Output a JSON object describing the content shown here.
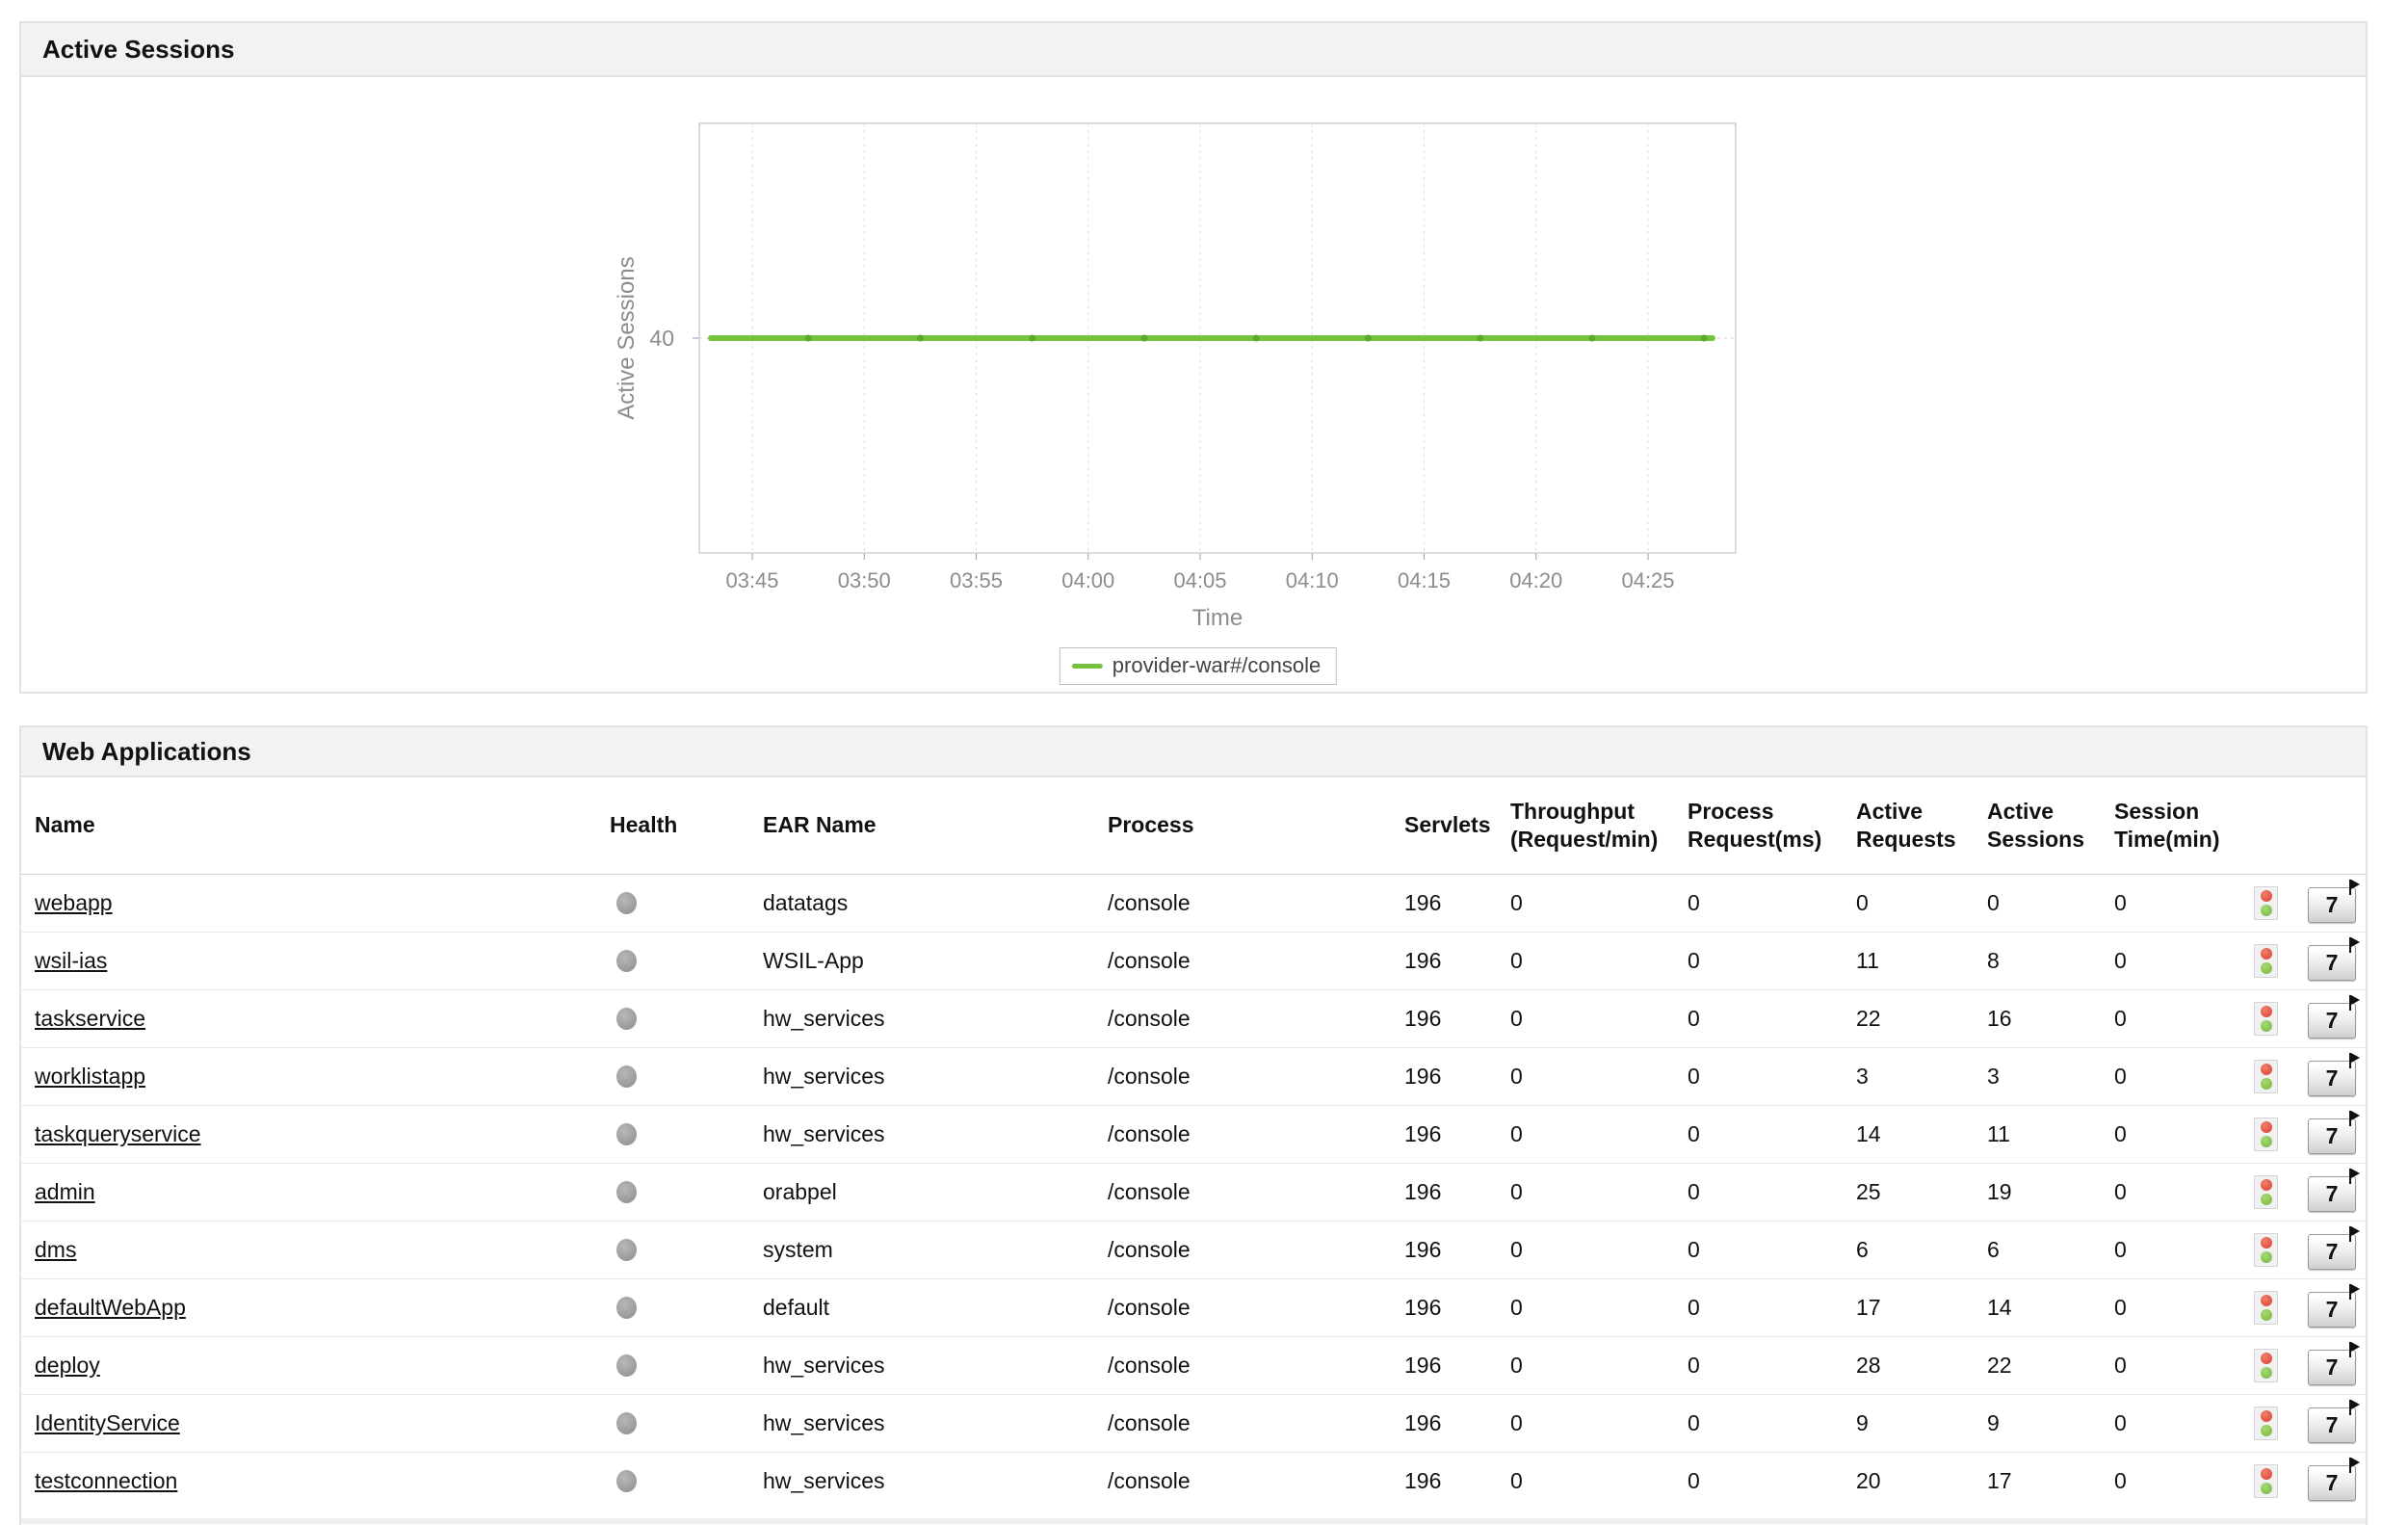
{
  "active_sessions_panel": {
    "title": "Active Sessions",
    "legend": {
      "label": "provider-war#/console",
      "color": "#76c23d"
    }
  },
  "chart_data": {
    "type": "line",
    "title": "Active Sessions",
    "xlabel": "Time",
    "ylabel": "Active Sessions",
    "x_ticks": [
      "03:45",
      "03:50",
      "03:55",
      "04:00",
      "04:05",
      "04:10",
      "04:15",
      "04:20",
      "04:25"
    ],
    "y_tick_labels": [
      "40"
    ],
    "ylim": [
      0,
      80
    ],
    "grid": "vertical-dashed",
    "legend_position": "bottom",
    "series": [
      {
        "name": "provider-war#/console",
        "color": "#76c23d",
        "marker_color": "#5ca832",
        "x": [
          "03:45",
          "03:50",
          "03:55",
          "04:00",
          "04:05",
          "04:10",
          "04:15",
          "04:20",
          "04:25"
        ],
        "values": [
          40,
          40,
          40,
          40,
          40,
          40,
          40,
          40,
          40
        ]
      }
    ]
  },
  "web_applications_panel": {
    "title": "Web Applications",
    "columns": [
      "Name",
      "Health",
      "EAR Name",
      "Process",
      "Servlets",
      "Throughput (Request/min)",
      "Process Request(ms)",
      "Active Requests",
      "Active Sessions",
      "Session Time(min)"
    ],
    "history_button_label": "7",
    "rows": [
      {
        "name": "webapp",
        "health": "gray",
        "ear_name": "datatags",
        "process": "/console",
        "servlets": "196",
        "throughput": "0",
        "process_request": "0",
        "active_requests": "0",
        "active_sessions": "0",
        "session_time": "0"
      },
      {
        "name": "wsil-ias",
        "health": "gray",
        "ear_name": "WSIL-App",
        "process": "/console",
        "servlets": "196",
        "throughput": "0",
        "process_request": "0",
        "active_requests": "11",
        "active_sessions": "8",
        "session_time": "0"
      },
      {
        "name": "taskservice",
        "health": "gray",
        "ear_name": "hw_services",
        "process": "/console",
        "servlets": "196",
        "throughput": "0",
        "process_request": "0",
        "active_requests": "22",
        "active_sessions": "16",
        "session_time": "0"
      },
      {
        "name": "worklistapp",
        "health": "gray",
        "ear_name": "hw_services",
        "process": "/console",
        "servlets": "196",
        "throughput": "0",
        "process_request": "0",
        "active_requests": "3",
        "active_sessions": "3",
        "session_time": "0"
      },
      {
        "name": "taskqueryservice",
        "health": "gray",
        "ear_name": "hw_services",
        "process": "/console",
        "servlets": "196",
        "throughput": "0",
        "process_request": "0",
        "active_requests": "14",
        "active_sessions": "11",
        "session_time": "0"
      },
      {
        "name": "admin",
        "health": "gray",
        "ear_name": "orabpel",
        "process": "/console",
        "servlets": "196",
        "throughput": "0",
        "process_request": "0",
        "active_requests": "25",
        "active_sessions": "19",
        "session_time": "0"
      },
      {
        "name": "dms",
        "health": "gray",
        "ear_name": "system",
        "process": "/console",
        "servlets": "196",
        "throughput": "0",
        "process_request": "0",
        "active_requests": "6",
        "active_sessions": "6",
        "session_time": "0"
      },
      {
        "name": "defaultWebApp",
        "health": "gray",
        "ear_name": "default",
        "process": "/console",
        "servlets": "196",
        "throughput": "0",
        "process_request": "0",
        "active_requests": "17",
        "active_sessions": "14",
        "session_time": "0"
      },
      {
        "name": "deploy",
        "health": "gray",
        "ear_name": "hw_services",
        "process": "/console",
        "servlets": "196",
        "throughput": "0",
        "process_request": "0",
        "active_requests": "28",
        "active_sessions": "22",
        "session_time": "0"
      },
      {
        "name": "IdentityService",
        "health": "gray",
        "ear_name": "hw_services",
        "process": "/console",
        "servlets": "196",
        "throughput": "0",
        "process_request": "0",
        "active_requests": "9",
        "active_sessions": "9",
        "session_time": "0"
      },
      {
        "name": "testconnection",
        "health": "gray",
        "ear_name": "hw_services",
        "process": "/console",
        "servlets": "196",
        "throughput": "0",
        "process_request": "0",
        "active_requests": "20",
        "active_sessions": "17",
        "session_time": "0"
      }
    ]
  },
  "colors": {
    "panel_header_bg": "#f2f2f2",
    "panel_border": "#e2e2e2",
    "series_green": "#76c23d",
    "health_gray": "#9e9e9e",
    "traffic_red": "#d93f2b",
    "traffic_green": "#74b739"
  }
}
